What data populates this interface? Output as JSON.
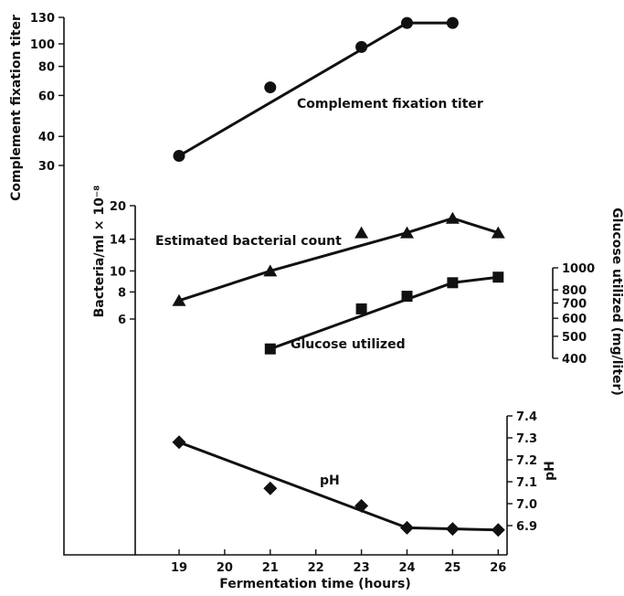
{
  "chart_data": {
    "type": "line",
    "x_axis": {
      "label": "Fermentation time (hours)",
      "ticks": [
        19,
        20,
        21,
        22,
        23,
        24,
        25,
        26
      ],
      "range": [
        19,
        26
      ]
    },
    "y_axes": [
      {
        "id": "cf",
        "label": "Complement fixation titer",
        "scale": "log",
        "ticks": [
          30,
          40,
          60,
          80,
          100,
          130
        ],
        "side": "left-outer"
      },
      {
        "id": "bact",
        "label": "Bacteria/ml × 10⁻⁸",
        "scale": "log",
        "ticks": [
          6,
          8,
          10,
          14,
          20
        ],
        "side": "left-inner"
      },
      {
        "id": "gluc",
        "label": "Glucose utilized (mg/liter)",
        "scale": "log",
        "ticks": [
          400,
          500,
          600,
          700,
          800,
          1000
        ],
        "side": "right"
      },
      {
        "id": "ph",
        "label": "pH",
        "scale": "linear",
        "ticks": [
          6.9,
          7.0,
          7.1,
          7.2,
          7.3,
          7.4
        ],
        "side": "right"
      }
    ],
    "series": [
      {
        "name": "Complement fixation titer",
        "axis": "cf",
        "marker": "circle",
        "points": [
          [
            19,
            33
          ],
          [
            21,
            65
          ],
          [
            23,
            97
          ],
          [
            24,
            123
          ],
          [
            25,
            123
          ]
        ],
        "fit": [
          [
            19,
            33
          ],
          [
            24,
            123
          ],
          [
            25,
            123
          ]
        ]
      },
      {
        "name": "Estimated bacterial count",
        "axis": "bact",
        "marker": "triangle",
        "points": [
          [
            19,
            7.3
          ],
          [
            21,
            10
          ],
          [
            23,
            15
          ],
          [
            24,
            15
          ],
          [
            25,
            17.5
          ],
          [
            26,
            15
          ]
        ],
        "fit": [
          [
            19,
            7.3
          ],
          [
            21,
            10
          ],
          [
            24,
            15
          ],
          [
            25,
            17.5
          ],
          [
            26,
            15
          ]
        ]
      },
      {
        "name": "Glucose utilized",
        "axis": "gluc",
        "marker": "square",
        "points": [
          [
            21,
            440
          ],
          [
            23,
            660
          ],
          [
            24,
            750
          ],
          [
            25,
            860
          ],
          [
            26,
            910
          ]
        ],
        "fit": [
          [
            21,
            440
          ],
          [
            25,
            860
          ],
          [
            26,
            910
          ]
        ]
      },
      {
        "name": "pH",
        "axis": "ph",
        "marker": "diamond",
        "points": [
          [
            19,
            7.28
          ],
          [
            21,
            7.07
          ],
          [
            23,
            6.99
          ],
          [
            24,
            6.89
          ],
          [
            25,
            6.885
          ],
          [
            26,
            6.88
          ]
        ],
        "fit": [
          [
            19,
            7.28
          ],
          [
            24,
            6.89
          ],
          [
            26,
            6.88
          ]
        ]
      }
    ],
    "grid": false,
    "legend": "none"
  }
}
